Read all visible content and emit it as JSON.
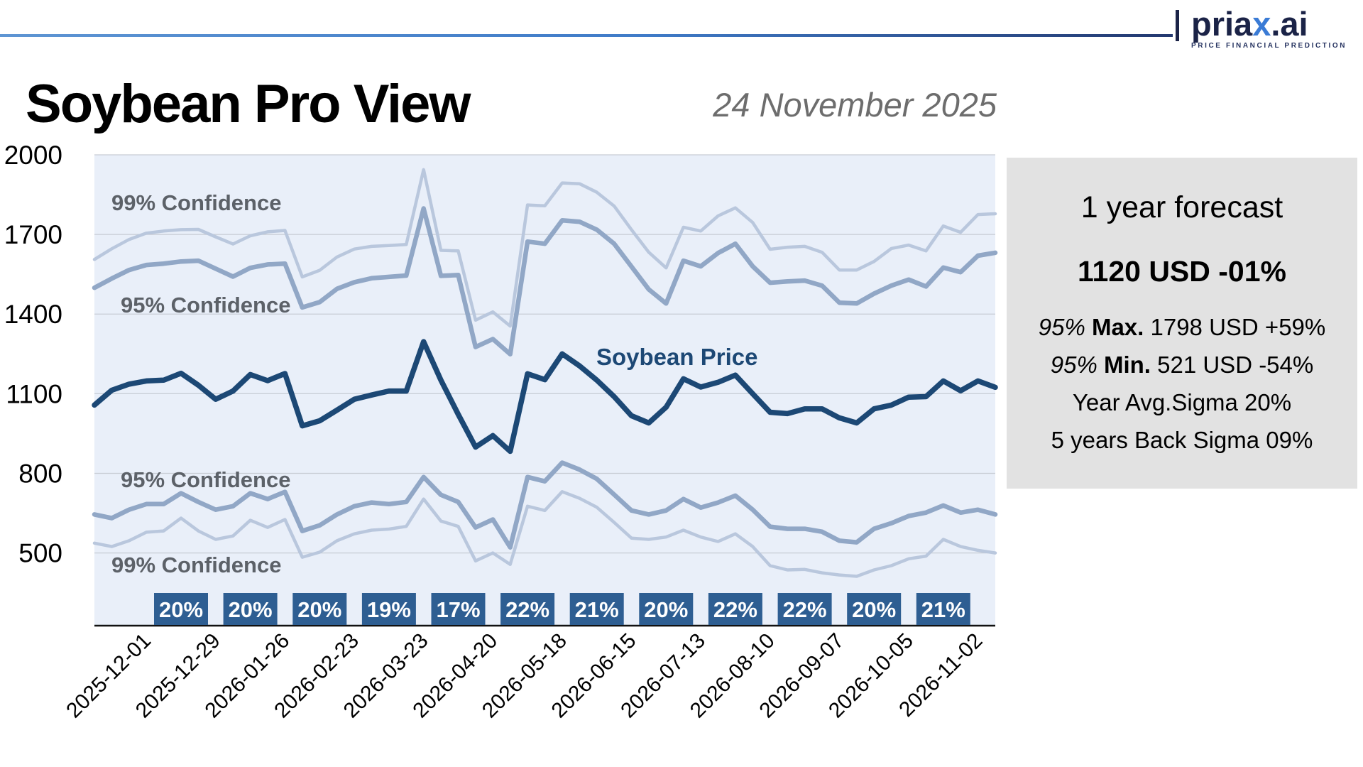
{
  "header": {
    "title": "Soybean Pro View",
    "date": "24 November 2025",
    "logo": {
      "pre": "pria",
      "x": "x",
      "post": ".ai",
      "tagline": "PRICE FINANCIAL PREDICTION"
    }
  },
  "panel": {
    "title": "1 year forecast",
    "main_value": "1120 USD -01%",
    "rows": [
      {
        "em": "95% ",
        "strong": "Max. ",
        "rest": "1798 USD +59%"
      },
      {
        "em": "95% ",
        "strong": "Min. ",
        "rest": "521 USD -54%"
      },
      {
        "em": "",
        "strong": "",
        "rest": "Year Avg.Sigma 20%"
      },
      {
        "em": "",
        "strong": "",
        "rest": "5 years Back Sigma 09%"
      }
    ]
  },
  "annotations": {
    "upper99": "99% Confidence",
    "upper95": "95% Confidence",
    "price": "Soybean Price",
    "lower95": "95% Confidence",
    "lower99": "99% Confidence"
  },
  "colors": {
    "plot_bg": "#e9eff9",
    "grid": "#c7ccd4",
    "axis": "#111111",
    "band99": "#b9c7dd",
    "band95": "#91a7c6",
    "price": "#1c4875",
    "badge_bg": "#2e5e92",
    "badge_text": "#ffffff"
  },
  "chart_data": {
    "type": "line",
    "title": "Soybean Pro View",
    "xlabel": "",
    "ylabel": "",
    "y_ticks": [
      2000,
      1700,
      1400,
      1100,
      800,
      500
    ],
    "ylim": [
      226,
      2000
    ],
    "grid": true,
    "legend_position": "in-chart labels",
    "n_points": 53,
    "x_tick_labels": [
      "2025-12-01",
      "2025-12-29",
      "2026-01-26",
      "2026-02-23",
      "2026-03-23",
      "2026-04-20",
      "2026-05-18",
      "2026-06-15",
      "2026-07-13",
      "2026-08-10",
      "2026-09-07",
      "2026-10-05",
      "2026-11-02"
    ],
    "x_tick_indices": [
      3,
      7,
      11,
      15,
      19,
      23,
      27,
      31,
      35,
      39,
      43,
      47,
      51
    ],
    "badges": [
      "20%",
      "20%",
      "20%",
      "19%",
      "17%",
      "22%",
      "21%",
      "20%",
      "22%",
      "22%",
      "20%",
      "21%"
    ],
    "series": [
      {
        "name": "99% Confidence (upper)",
        "values": [
          1606,
          1646,
          1681,
          1705,
          1713,
          1718,
          1719,
          1691,
          1664,
          1695,
          1710,
          1715,
          1540,
          1565,
          1615,
          1645,
          1655,
          1658,
          1662,
          1944,
          1640,
          1638,
          1377,
          1408,
          1355,
          1811,
          1808,
          1894,
          1891,
          1859,
          1807,
          1718,
          1633,
          1574,
          1727,
          1713,
          1770,
          1800,
          1745,
          1644,
          1652,
          1655,
          1633,
          1566,
          1566,
          1598,
          1647,
          1660,
          1638,
          1732,
          1708,
          1775,
          1778
        ]
      },
      {
        "name": "95% Confidence (upper)",
        "values": [
          1499,
          1534,
          1566,
          1585,
          1590,
          1598,
          1601,
          1571,
          1541,
          1574,
          1587,
          1590,
          1425,
          1445,
          1495,
          1520,
          1535,
          1540,
          1545,
          1798,
          1544,
          1547,
          1276,
          1306,
          1249,
          1673,
          1665,
          1753,
          1748,
          1718,
          1665,
          1579,
          1493,
          1440,
          1601,
          1580,
          1630,
          1665,
          1580,
          1518,
          1523,
          1526,
          1507,
          1443,
          1440,
          1477,
          1507,
          1530,
          1504,
          1575,
          1558,
          1620,
          1631
        ]
      },
      {
        "name": "Soybean Price",
        "values": [
          1057,
          1113,
          1136,
          1148,
          1151,
          1177,
          1132,
          1079,
          1110,
          1172,
          1149,
          1176,
          979,
          998,
          1038,
          1079,
          1095,
          1110,
          1110,
          1296,
          1151,
          1022,
          899,
          942,
          883,
          1175,
          1153,
          1250,
          1205,
          1151,
          1089,
          1017,
          990,
          1049,
          1156,
          1125,
          1143,
          1170,
          1100,
          1030,
          1025,
          1043,
          1043,
          1009,
          990,
          1043,
          1057,
          1087,
          1089,
          1148,
          1111,
          1148,
          1124
        ]
      },
      {
        "name": "95% Confidence (lower)",
        "values": [
          645,
          631,
          663,
          684,
          684,
          725,
          692,
          663,
          676,
          725,
          703,
          730,
          583,
          604,
          645,
          676,
          690,
          684,
          692,
          786,
          719,
          692,
          596,
          626,
          521,
          786,
          770,
          840,
          814,
          779,
          720,
          660,
          645,
          660,
          703,
          671,
          690,
          716,
          663,
          599,
          591,
          591,
          580,
          546,
          540,
          591,
          612,
          639,
          652,
          679,
          652,
          663,
          645
        ]
      },
      {
        "name": "99% Confidence (lower)",
        "values": [
          537,
          524,
          546,
          578,
          583,
          631,
          583,
          551,
          564,
          623,
          596,
          626,
          484,
          503,
          546,
          572,
          586,
          590,
          600,
          703,
          620,
          600,
          470,
          500,
          457,
          676,
          660,
          731,
          706,
          672,
          615,
          556,
          551,
          560,
          586,
          560,
          543,
          572,
          524,
          452,
          436,
          438,
          425,
          417,
          412,
          436,
          452,
          478,
          488,
          551,
          524,
          510,
          500
        ]
      }
    ]
  }
}
